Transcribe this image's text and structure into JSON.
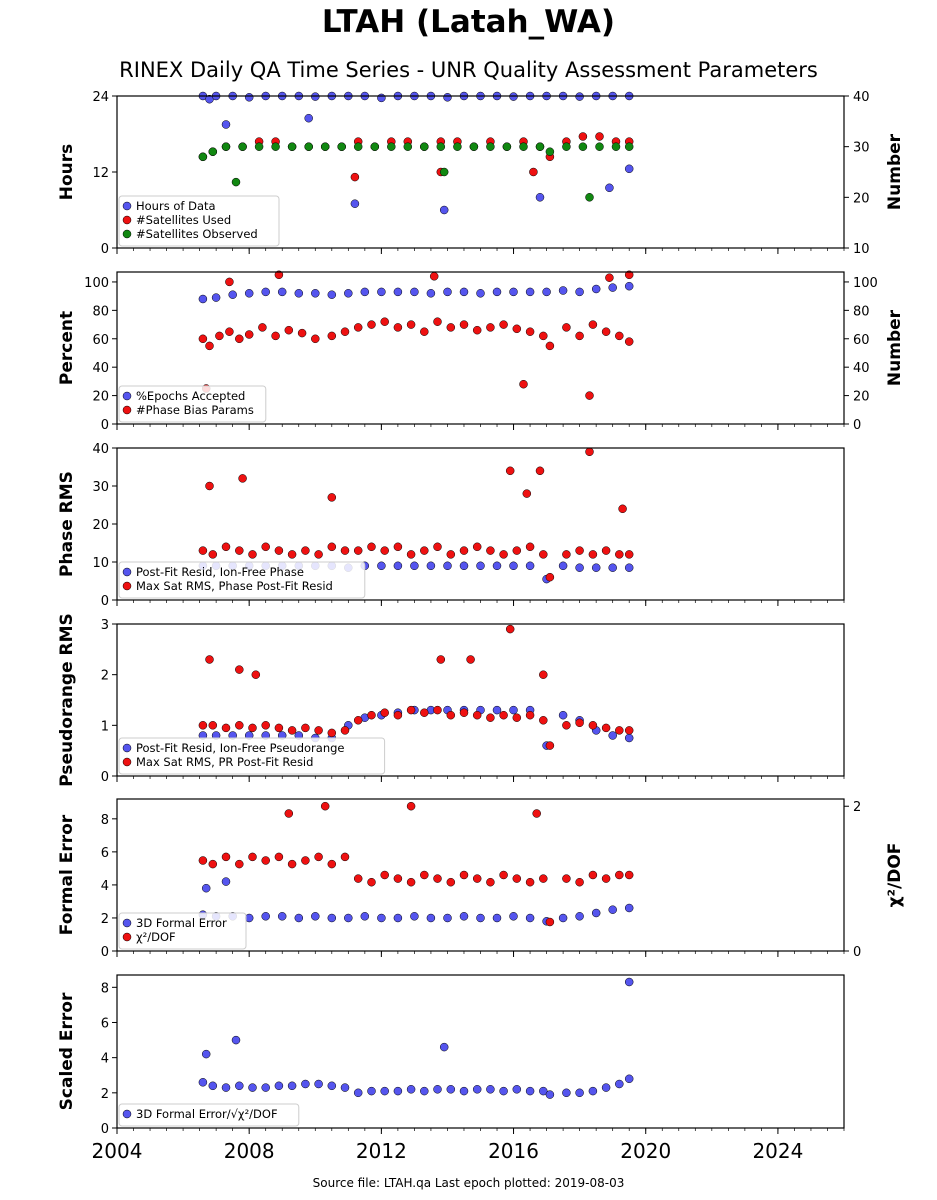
{
  "title": "LTAH (Latah_WA)",
  "subtitle": "RINEX Daily QA Time Series - UNR Quality Assessment Parameters",
  "footer": "Source file: LTAH.qa Last epoch plotted: 2019-08-03",
  "colors": {
    "blue": "#5555ee",
    "red": "#ee1111",
    "green": "#118811",
    "edge": "#000000"
  },
  "chart_data": [
    {
      "type": "scatter",
      "ylabel": "Hours",
      "y2label": "Number",
      "ylim": [
        0,
        24
      ],
      "yticks": [
        "0",
        "12",
        "24"
      ],
      "y2lim": [
        10,
        40
      ],
      "y2ticks": [
        "10",
        "20",
        "30",
        "40"
      ],
      "legend_position": "lower-left",
      "series": [
        {
          "name": "Hours of Data",
          "color": "blue",
          "axis": "left",
          "x": [
            2006.6,
            2006.8,
            2007.0,
            2007.5,
            2008.0,
            2008.5,
            2009.0,
            2009.5,
            2010.0,
            2010.5,
            2011.0,
            2011.5,
            2012.0,
            2012.5,
            2013.0,
            2013.5,
            2014.0,
            2014.5,
            2015.0,
            2015.5,
            2016.0,
            2016.5,
            2017.0,
            2017.5,
            2018.0,
            2018.5,
            2019.0,
            2019.5,
            2007.3,
            2009.8,
            2011.2,
            2013.9,
            2016.8,
            2018.9,
            2019.5
          ],
          "y": [
            24,
            23.5,
            24,
            24,
            23.8,
            24,
            24,
            24,
            23.9,
            24,
            24,
            24,
            23.7,
            24,
            24,
            24,
            23.8,
            24,
            24,
            24,
            23.9,
            24,
            24,
            24,
            23.9,
            24,
            24,
            24,
            19.5,
            20.5,
            7.0,
            6.0,
            8.0,
            9.5,
            12.5
          ]
        },
        {
          "name": "#Satellites Used",
          "color": "red",
          "axis": "right",
          "x": [
            2006.6,
            2006.9,
            2007.3,
            2007.8,
            2008.3,
            2008.8,
            2009.3,
            2009.8,
            2010.3,
            2010.8,
            2011.3,
            2011.8,
            2012.3,
            2012.8,
            2013.3,
            2013.8,
            2014.3,
            2014.8,
            2015.3,
            2015.8,
            2016.3,
            2016.8,
            2017.1,
            2017.6,
            2018.1,
            2018.6,
            2019.1,
            2019.5,
            2011.2,
            2013.8,
            2016.6
          ],
          "y": [
            28,
            29,
            30,
            30,
            31,
            31,
            30,
            30,
            30,
            30,
            31,
            30,
            31,
            31,
            30,
            31,
            31,
            30,
            31,
            30,
            31,
            30,
            28,
            31,
            32,
            32,
            31,
            31,
            24,
            25,
            25
          ]
        },
        {
          "name": "#Satellites Observed",
          "color": "green",
          "axis": "right",
          "x": [
            2006.6,
            2006.9,
            2007.3,
            2007.8,
            2008.3,
            2008.8,
            2009.3,
            2009.8,
            2010.3,
            2010.8,
            2011.3,
            2011.8,
            2012.3,
            2012.8,
            2013.3,
            2013.8,
            2014.3,
            2014.8,
            2015.3,
            2015.8,
            2016.3,
            2016.8,
            2017.1,
            2017.6,
            2018.1,
            2018.6,
            2019.1,
            2019.5,
            2007.6,
            2013.9,
            2018.3
          ],
          "y": [
            28,
            29,
            30,
            30,
            30,
            30,
            30,
            30,
            30,
            30,
            30,
            30,
            30,
            30,
            30,
            30,
            30,
            30,
            30,
            30,
            30,
            30,
            29,
            30,
            30,
            30,
            30,
            30,
            23,
            25,
            20
          ]
        }
      ]
    },
    {
      "type": "scatter",
      "ylabel": "Percent",
      "y2label": "Number",
      "ylim": [
        0,
        107
      ],
      "yticks": [
        "0",
        "20",
        "40",
        "60",
        "80",
        "100"
      ],
      "y2lim": [
        0,
        107
      ],
      "y2ticks": [
        "0",
        "20",
        "40",
        "60",
        "80",
        "100"
      ],
      "legend_position": "lower-left",
      "series": [
        {
          "name": "%Epochs Accepted",
          "color": "blue",
          "axis": "left",
          "x": [
            2006.6,
            2007.0,
            2007.5,
            2008.0,
            2008.5,
            2009.0,
            2009.5,
            2010.0,
            2010.5,
            2011.0,
            2011.5,
            2012.0,
            2012.5,
            2013.0,
            2013.5,
            2014.0,
            2014.5,
            2015.0,
            2015.5,
            2016.0,
            2016.5,
            2017.0,
            2017.5,
            2018.0,
            2018.5,
            2019.0,
            2019.5
          ],
          "y": [
            88,
            89,
            91,
            92,
            93,
            93,
            92,
            92,
            91,
            92,
            93,
            93,
            93,
            93,
            92,
            93,
            93,
            92,
            93,
            93,
            93,
            93,
            94,
            93,
            95,
            96,
            97
          ]
        },
        {
          "name": "#Phase Bias Params",
          "color": "red",
          "axis": "right",
          "x": [
            2006.6,
            2006.8,
            2007.1,
            2007.4,
            2007.7,
            2008.0,
            2008.4,
            2008.8,
            2009.2,
            2009.6,
            2010.0,
            2010.5,
            2010.9,
            2011.3,
            2011.7,
            2012.1,
            2012.5,
            2012.9,
            2013.3,
            2013.7,
            2014.1,
            2014.5,
            2014.9,
            2015.3,
            2015.7,
            2016.1,
            2016.5,
            2016.9,
            2017.1,
            2017.6,
            2018.0,
            2018.4,
            2018.8,
            2019.2,
            2019.5,
            2007.4,
            2008.9,
            2013.6,
            2018.3,
            2018.9,
            2019.5,
            2006.7,
            2016.3
          ],
          "y": [
            60,
            55,
            62,
            65,
            60,
            63,
            68,
            62,
            66,
            64,
            60,
            62,
            65,
            68,
            70,
            72,
            68,
            70,
            65,
            72,
            68,
            70,
            66,
            68,
            70,
            67,
            65,
            62,
            55,
            68,
            62,
            70,
            65,
            62,
            58,
            100,
            105,
            104,
            20,
            103,
            105,
            25,
            28
          ]
        }
      ]
    },
    {
      "type": "scatter",
      "ylabel": "Phase RMS",
      "ylim": [
        0,
        40
      ],
      "yticks": [
        "0",
        "10",
        "20",
        "30",
        "40"
      ],
      "legend_position": "lower-left",
      "series": [
        {
          "name": "Post-Fit Resid, Ion-Free Phase",
          "color": "blue",
          "axis": "left",
          "x": [
            2006.6,
            2007.0,
            2007.5,
            2008.0,
            2008.5,
            2009.0,
            2009.5,
            2010.0,
            2010.5,
            2011.0,
            2011.5,
            2012.0,
            2012.5,
            2013.0,
            2013.5,
            2014.0,
            2014.5,
            2015.0,
            2015.5,
            2016.0,
            2016.5,
            2017.0,
            2017.5,
            2018.0,
            2018.5,
            2019.0,
            2019.5
          ],
          "y": [
            9,
            9,
            9,
            9,
            9,
            9,
            9,
            9,
            9,
            8.5,
            9,
            9,
            9,
            9,
            9,
            9,
            9,
            9,
            9,
            9,
            9,
            5.5,
            9,
            8.5,
            8.5,
            8.5,
            8.5
          ]
        },
        {
          "name": "Max Sat RMS, Phase Post-Fit Resid",
          "color": "red",
          "axis": "left",
          "x": [
            2006.6,
            2006.9,
            2007.3,
            2007.7,
            2008.1,
            2008.5,
            2008.9,
            2009.3,
            2009.7,
            2010.1,
            2010.5,
            2010.9,
            2011.3,
            2011.7,
            2012.1,
            2012.5,
            2012.9,
            2013.3,
            2013.7,
            2014.1,
            2014.5,
            2014.9,
            2015.3,
            2015.7,
            2016.1,
            2016.5,
            2016.9,
            2017.1,
            2017.6,
            2018.0,
            2018.4,
            2018.8,
            2019.2,
            2019.5,
            2006.8,
            2007.8,
            2010.5,
            2015.9,
            2016.4,
            2016.8,
            2018.3,
            2019.3
          ],
          "y": [
            13,
            12,
            14,
            13,
            12,
            14,
            13,
            12,
            13,
            12,
            14,
            13,
            13,
            14,
            13,
            14,
            12,
            13,
            14,
            12,
            13,
            14,
            13,
            12,
            13,
            14,
            12,
            6,
            12,
            13,
            12,
            13,
            12,
            12,
            30,
            32,
            27,
            34,
            28,
            34,
            39,
            24
          ]
        }
      ]
    },
    {
      "type": "scatter",
      "ylabel": "Pseudorange RMS",
      "ylim": [
        0,
        3
      ],
      "yticks": [
        "0",
        "1",
        "2",
        "3"
      ],
      "legend_position": "lower-left",
      "series": [
        {
          "name": "Post-Fit Resid, Ion-Free Pseudorange",
          "color": "blue",
          "axis": "left",
          "x": [
            2006.6,
            2007.0,
            2007.5,
            2008.0,
            2008.5,
            2009.0,
            2009.5,
            2010.0,
            2010.5,
            2011.0,
            2011.5,
            2012.0,
            2012.5,
            2013.0,
            2013.5,
            2014.0,
            2014.5,
            2015.0,
            2015.5,
            2016.0,
            2016.5,
            2017.0,
            2017.5,
            2018.0,
            2018.5,
            2019.0,
            2019.5
          ],
          "y": [
            0.8,
            0.8,
            0.8,
            0.8,
            0.8,
            0.8,
            0.8,
            0.75,
            0.75,
            1.0,
            1.15,
            1.2,
            1.25,
            1.3,
            1.3,
            1.3,
            1.3,
            1.3,
            1.3,
            1.3,
            1.3,
            0.6,
            1.2,
            1.1,
            0.9,
            0.8,
            0.75
          ]
        },
        {
          "name": "Max Sat RMS, PR Post-Fit Resid",
          "color": "red",
          "axis": "left",
          "x": [
            2006.6,
            2006.9,
            2007.3,
            2007.7,
            2008.1,
            2008.5,
            2008.9,
            2009.3,
            2009.7,
            2010.1,
            2010.5,
            2010.9,
            2011.3,
            2011.7,
            2012.1,
            2012.5,
            2012.9,
            2013.3,
            2013.7,
            2014.1,
            2014.5,
            2014.9,
            2015.3,
            2015.7,
            2016.1,
            2016.5,
            2016.9,
            2017.1,
            2017.6,
            2018.0,
            2018.4,
            2018.8,
            2019.2,
            2019.5,
            2006.8,
            2007.7,
            2008.2,
            2013.8,
            2014.7,
            2015.9,
            2016.9
          ],
          "y": [
            1.0,
            1.0,
            0.95,
            1.0,
            0.95,
            1.0,
            0.95,
            0.9,
            0.95,
            0.9,
            0.85,
            0.9,
            1.1,
            1.2,
            1.25,
            1.2,
            1.3,
            1.25,
            1.3,
            1.2,
            1.25,
            1.2,
            1.15,
            1.2,
            1.15,
            1.2,
            1.1,
            0.6,
            1.0,
            1.05,
            1.0,
            0.95,
            0.9,
            0.9,
            2.3,
            2.1,
            2.0,
            2.3,
            2.3,
            2.9,
            2.0
          ]
        }
      ]
    },
    {
      "type": "scatter",
      "ylabel": "Formal Error",
      "y2label": "χ²/DOF",
      "ylim": [
        0,
        9.2
      ],
      "yticks": [
        "0",
        "2",
        "4",
        "6",
        "8"
      ],
      "y2lim": [
        0,
        2.1
      ],
      "y2ticks": [
        "0",
        "2"
      ],
      "legend_position": "lower-left",
      "series": [
        {
          "name": "3D Formal Error",
          "color": "blue",
          "axis": "left",
          "x": [
            2006.6,
            2007.0,
            2007.5,
            2008.0,
            2008.5,
            2009.0,
            2009.5,
            2010.0,
            2010.5,
            2011.0,
            2011.5,
            2012.0,
            2012.5,
            2013.0,
            2013.5,
            2014.0,
            2014.5,
            2015.0,
            2015.5,
            2016.0,
            2016.5,
            2017.0,
            2017.5,
            2018.0,
            2018.5,
            2019.0,
            2019.5,
            2006.7,
            2007.3
          ],
          "y": [
            2.2,
            2.1,
            2.1,
            2.0,
            2.1,
            2.1,
            2.0,
            2.1,
            2.0,
            2.0,
            2.1,
            2.0,
            2.0,
            2.1,
            2.0,
            2.0,
            2.1,
            2.0,
            2.0,
            2.1,
            2.0,
            1.8,
            2.0,
            2.1,
            2.3,
            2.5,
            2.6,
            3.8,
            4.2
          ]
        },
        {
          "name": "χ²/DOF",
          "color": "red",
          "axis": "right",
          "x": [
            2006.6,
            2006.9,
            2007.3,
            2007.7,
            2008.1,
            2008.5,
            2008.9,
            2009.3,
            2009.7,
            2010.1,
            2010.5,
            2010.9,
            2011.3,
            2011.7,
            2012.1,
            2012.5,
            2012.9,
            2013.3,
            2013.7,
            2014.1,
            2014.5,
            2014.9,
            2015.3,
            2015.7,
            2016.1,
            2016.5,
            2016.9,
            2017.1,
            2017.6,
            2018.0,
            2018.4,
            2018.8,
            2019.2,
            2019.5,
            2009.2,
            2010.3,
            2012.9,
            2016.7
          ],
          "y": [
            1.25,
            1.2,
            1.3,
            1.2,
            1.3,
            1.25,
            1.3,
            1.2,
            1.25,
            1.3,
            1.2,
            1.3,
            1.0,
            0.95,
            1.05,
            1.0,
            0.95,
            1.05,
            1.0,
            0.95,
            1.05,
            1.0,
            0.95,
            1.05,
            1.0,
            0.95,
            1.0,
            0.4,
            1.0,
            0.95,
            1.05,
            1.0,
            1.05,
            1.05,
            1.9,
            2.0,
            2.0,
            1.9
          ]
        }
      ]
    },
    {
      "type": "scatter",
      "ylabel": "Scaled Error",
      "ylim": [
        0,
        8.7
      ],
      "yticks": [
        "0",
        "2",
        "4",
        "6",
        "8"
      ],
      "xlim": [
        2004,
        2026
      ],
      "xticks": [
        "2004",
        "2008",
        "2012",
        "2016",
        "2020",
        "2024"
      ],
      "legend_position": "lower-left",
      "series": [
        {
          "name": "3D Formal Error/√χ²/DOF",
          "color": "blue",
          "axis": "left",
          "x": [
            2006.6,
            2006.9,
            2007.3,
            2007.7,
            2008.1,
            2008.5,
            2008.9,
            2009.3,
            2009.7,
            2010.1,
            2010.5,
            2010.9,
            2011.3,
            2011.7,
            2012.1,
            2012.5,
            2012.9,
            2013.3,
            2013.7,
            2014.1,
            2014.5,
            2014.9,
            2015.3,
            2015.7,
            2016.1,
            2016.5,
            2016.9,
            2017.1,
            2017.6,
            2018.0,
            2018.4,
            2018.8,
            2019.2,
            2019.5,
            2006.7,
            2007.6,
            2013.9,
            2019.5
          ],
          "y": [
            2.6,
            2.4,
            2.3,
            2.4,
            2.3,
            2.3,
            2.4,
            2.4,
            2.5,
            2.5,
            2.4,
            2.3,
            2.0,
            2.1,
            2.1,
            2.1,
            2.2,
            2.1,
            2.2,
            2.2,
            2.1,
            2.2,
            2.2,
            2.1,
            2.2,
            2.1,
            2.1,
            1.9,
            2.0,
            2.0,
            2.1,
            2.3,
            2.5,
            2.8,
            4.2,
            5.0,
            4.6,
            8.3
          ]
        }
      ]
    }
  ]
}
